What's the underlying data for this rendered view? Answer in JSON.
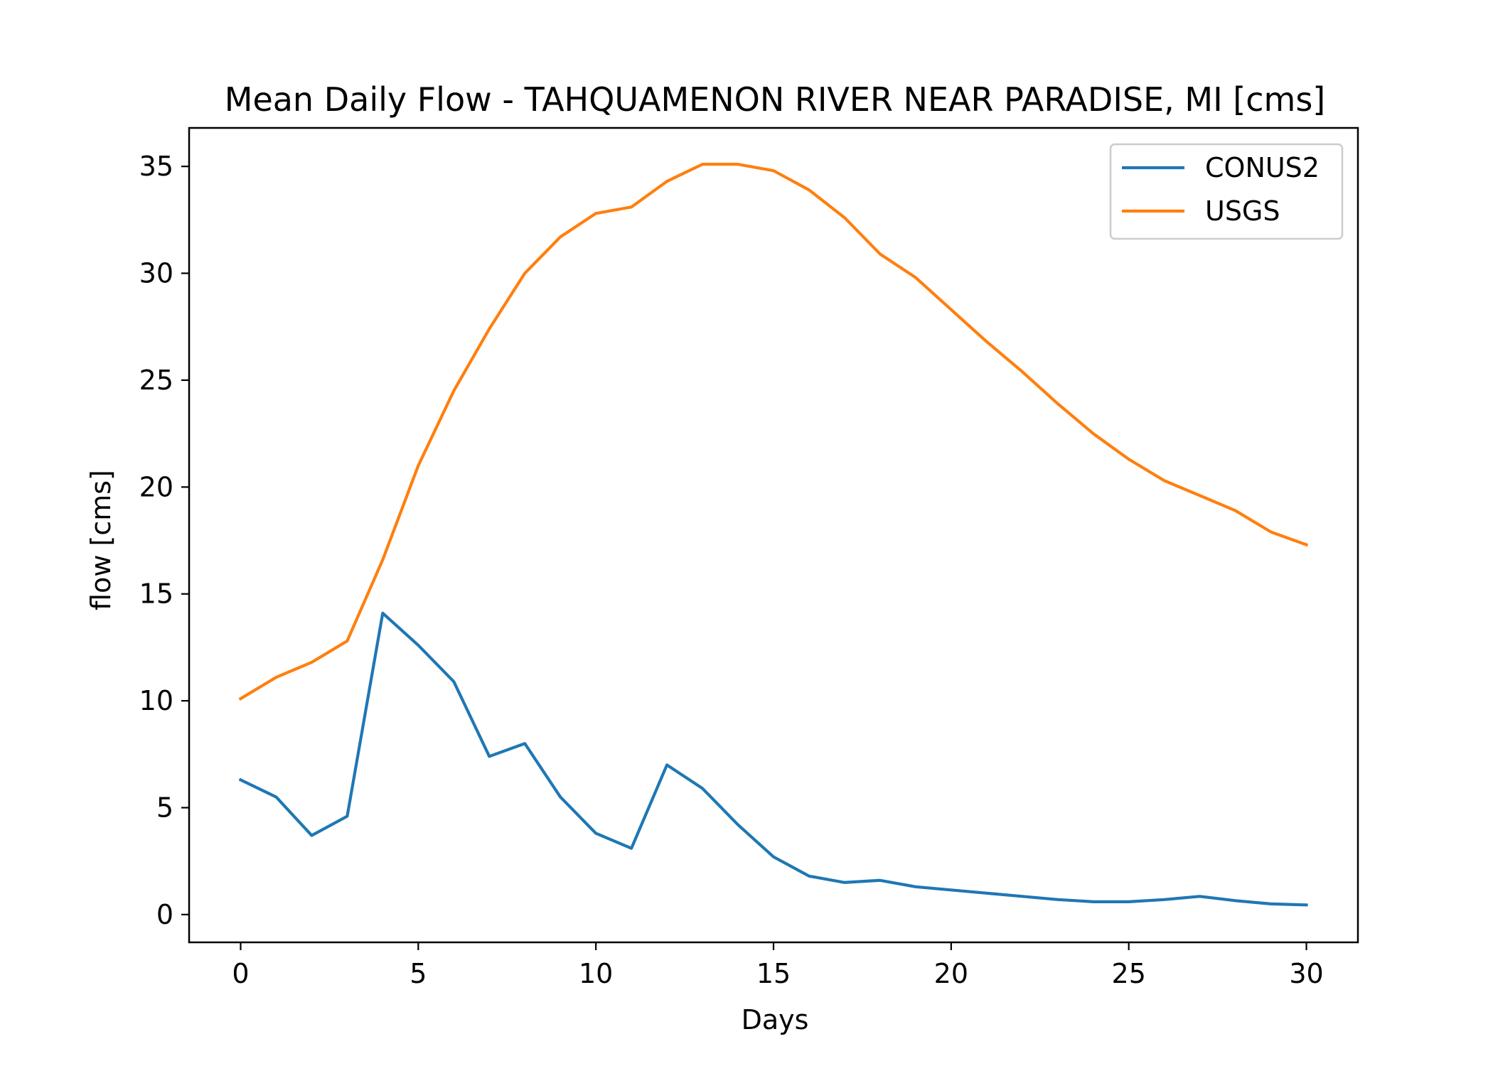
{
  "chart_data": {
    "type": "line",
    "title": "Mean Daily Flow - TAHQUAMENON RIVER NEAR PARADISE, MI [cms]",
    "xlabel": "Days",
    "ylabel": "flow [cms]",
    "xlim": [
      -1.45,
      31.45
    ],
    "ylim": [
      -1.3,
      36.8
    ],
    "xticks": [
      0,
      5,
      10,
      15,
      20,
      25,
      30
    ],
    "yticks": [
      0,
      5,
      10,
      15,
      20,
      25,
      30,
      35
    ],
    "grid": false,
    "legend_position": "top-right",
    "x": [
      0,
      1,
      2,
      3,
      4,
      5,
      6,
      7,
      8,
      9,
      10,
      11,
      12,
      13,
      14,
      15,
      16,
      17,
      18,
      19,
      20,
      21,
      22,
      23,
      24,
      25,
      26,
      27,
      28,
      29,
      30
    ],
    "series": [
      {
        "name": "CONUS2",
        "color": "#1f77b4",
        "values": [
          6.3,
          5.5,
          3.7,
          4.6,
          14.1,
          12.6,
          10.9,
          7.4,
          8.0,
          5.5,
          3.8,
          3.1,
          7.0,
          5.9,
          4.2,
          2.7,
          1.8,
          1.5,
          1.6,
          1.3,
          1.15,
          1.0,
          0.85,
          0.7,
          0.6,
          0.6,
          0.7,
          0.85,
          0.65,
          0.5,
          0.45
        ]
      },
      {
        "name": "USGS",
        "color": "#ff7f0e",
        "values": [
          10.1,
          11.1,
          11.8,
          12.8,
          16.6,
          21.0,
          24.5,
          27.4,
          30.0,
          31.7,
          32.8,
          33.1,
          34.3,
          35.1,
          35.1,
          34.8,
          33.9,
          32.6,
          30.9,
          29.8,
          28.3,
          26.8,
          25.4,
          23.9,
          22.5,
          21.3,
          20.3,
          19.6,
          18.9,
          17.9,
          17.3
        ]
      }
    ]
  }
}
